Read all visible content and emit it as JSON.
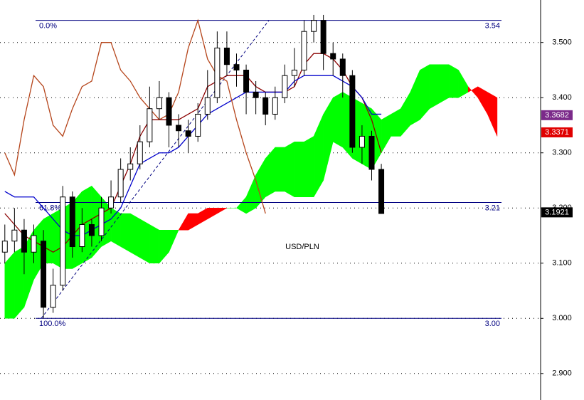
{
  "chart_data": {
    "type": "candlestick",
    "title": "USD/PLN",
    "x": [
      0,
      1,
      2,
      3,
      4,
      5,
      6,
      7,
      8,
      9,
      10,
      11,
      12,
      13,
      14,
      15,
      16,
      17,
      18,
      19,
      20,
      21,
      22,
      23,
      24,
      25,
      26,
      27,
      28,
      29,
      30,
      31,
      32,
      33,
      34,
      35,
      36,
      37,
      38,
      39
    ],
    "open": [
      3.12,
      3.14,
      3.16,
      3.12,
      3.14,
      3.02,
      3.06,
      3.22,
      3.13,
      3.17,
      3.15,
      3.2,
      3.22,
      3.27,
      3.28,
      3.32,
      3.38,
      3.4,
      3.35,
      3.34,
      3.33,
      3.37,
      3.4,
      3.49,
      3.46,
      3.45,
      3.41,
      3.4,
      3.37,
      3.4,
      3.44,
      3.45,
      3.52,
      3.54,
      3.48,
      3.47,
      3.44,
      3.31,
      3.33,
      3.27
    ],
    "high": [
      3.17,
      3.2,
      3.18,
      3.17,
      3.16,
      3.09,
      3.24,
      3.23,
      3.2,
      3.18,
      3.22,
      3.25,
      3.29,
      3.31,
      3.35,
      3.42,
      3.43,
      3.41,
      3.37,
      3.36,
      3.39,
      3.45,
      3.52,
      3.52,
      3.48,
      3.46,
      3.43,
      3.41,
      3.42,
      3.46,
      3.49,
      3.54,
      3.55,
      3.55,
      3.5,
      3.48,
      3.45,
      3.35,
      3.34,
      3.28
    ],
    "low": [
      3.1,
      3.12,
      3.08,
      3.1,
      3.0,
      3.01,
      3.05,
      3.11,
      3.12,
      3.13,
      3.14,
      3.19,
      3.21,
      3.25,
      3.27,
      3.31,
      3.36,
      3.31,
      3.31,
      3.3,
      3.32,
      3.36,
      3.39,
      3.44,
      3.42,
      3.37,
      3.37,
      3.35,
      3.36,
      3.39,
      3.42,
      3.44,
      3.5,
      3.45,
      3.44,
      3.4,
      3.3,
      3.28,
      3.25,
      3.19
    ],
    "close": [
      3.14,
      3.16,
      3.12,
      3.15,
      3.02,
      3.06,
      3.22,
      3.13,
      3.17,
      3.15,
      3.2,
      3.22,
      3.27,
      3.28,
      3.32,
      3.38,
      3.4,
      3.35,
      3.34,
      3.33,
      3.37,
      3.4,
      3.49,
      3.46,
      3.45,
      3.41,
      3.4,
      3.37,
      3.4,
      3.44,
      3.45,
      3.52,
      3.54,
      3.48,
      3.47,
      3.44,
      3.31,
      3.33,
      3.27,
      3.19
    ],
    "up_color": "#ffffff",
    "down_color": "#000000",
    "lines": [
      {
        "color": "#8b0000",
        "values": [
          3.19,
          3.17,
          3.15,
          3.14,
          3.13,
          3.12,
          3.13,
          3.15,
          3.17,
          3.18,
          3.19,
          3.2,
          3.24,
          3.28,
          3.33,
          3.36,
          3.36,
          3.36,
          3.36,
          3.37,
          3.38,
          3.42,
          3.43,
          3.44,
          3.44,
          3.44,
          3.42,
          3.41,
          3.41,
          3.41,
          3.42,
          3.46,
          3.48,
          3.48,
          3.47,
          3.45,
          3.42,
          3.4,
          3.36,
          3.3
        ]
      },
      {
        "color": "#0000cc",
        "values": [
          3.23,
          3.22,
          3.22,
          3.22,
          3.2,
          3.18,
          3.16,
          3.15,
          3.15,
          3.16,
          3.17,
          3.18,
          3.2,
          3.24,
          3.28,
          3.29,
          3.3,
          3.3,
          3.31,
          3.33,
          3.35,
          3.37,
          3.38,
          3.39,
          3.4,
          3.41,
          3.41,
          3.41,
          3.41,
          3.41,
          3.43,
          3.44,
          3.44,
          3.44,
          3.44,
          3.43,
          3.42,
          3.4,
          3.37,
          3.37
        ]
      },
      {
        "color": "#b5451b",
        "values": [
          3.3,
          3.26,
          3.36,
          3.44,
          3.42,
          3.35,
          3.33,
          3.38,
          3.42,
          3.43,
          3.5,
          3.5,
          3.45,
          3.43,
          3.4,
          3.38,
          3.36,
          3.37,
          3.41,
          3.49,
          3.54,
          3.47,
          3.44,
          3.43,
          3.36,
          3.3,
          3.25,
          3.19,
          null,
          null,
          null,
          null,
          null,
          null,
          null,
          null,
          null,
          null,
          null,
          null
        ]
      }
    ],
    "cloud_x": [
      0,
      1,
      2,
      3,
      4,
      5,
      6,
      7,
      8,
      9,
      10,
      11,
      12,
      13,
      14,
      15,
      16,
      17,
      18,
      19,
      20,
      21,
      22,
      23,
      24,
      25,
      26,
      27,
      28,
      29,
      30,
      31,
      32,
      33,
      34,
      35,
      36,
      37,
      38,
      39,
      40,
      41,
      42,
      43,
      44,
      45,
      46,
      47,
      48,
      49,
      50,
      51
    ],
    "span_a": [
      3.1,
      3.12,
      3.13,
      3.16,
      3.18,
      3.19,
      3.2,
      3.21,
      3.23,
      3.24,
      3.22,
      3.2,
      3.19,
      3.19,
      3.18,
      3.17,
      3.16,
      3.16,
      3.16,
      3.16,
      3.17,
      3.18,
      3.19,
      3.2,
      3.2,
      3.22,
      3.26,
      3.29,
      3.31,
      3.31,
      3.32,
      3.32,
      3.33,
      3.37,
      3.4,
      3.41,
      3.4,
      3.39,
      3.38,
      3.36,
      3.37,
      3.38,
      3.41,
      3.45,
      3.46,
      3.46,
      3.46,
      3.45,
      3.42,
      3.4,
      3.37,
      3.33
    ],
    "span_b": [
      3.0,
      3.0,
      3.02,
      3.07,
      3.1,
      3.1,
      3.09,
      3.09,
      3.1,
      3.11,
      3.13,
      3.14,
      3.13,
      3.12,
      3.11,
      3.1,
      3.1,
      3.12,
      3.16,
      3.19,
      3.19,
      3.2,
      3.2,
      3.2,
      3.2,
      3.19,
      3.2,
      3.22,
      3.23,
      3.23,
      3.22,
      3.22,
      3.22,
      3.25,
      3.32,
      3.31,
      3.29,
      3.28,
      3.27,
      3.3,
      3.33,
      3.33,
      3.35,
      3.36,
      3.38,
      3.39,
      3.4,
      3.4,
      3.41,
      3.42,
      3.41,
      3.4
    ],
    "cloud_up_color": "#00ff00",
    "cloud_down_color": "#ff0000",
    "fib_levels": {
      "labels": [
        "0.0%",
        "61.8%",
        "100.0%"
      ],
      "values": [
        3.54,
        3.21,
        3.0
      ],
      "value_labels": [
        "3.54",
        "3.21",
        "3.00"
      ]
    },
    "price_tags": {
      "values": [
        3.3682,
        3.3371,
        3.1921
      ],
      "colors": [
        "#7b2a8a",
        "#e00000",
        "#000000"
      ]
    },
    "xlim": [
      -0.5,
      55.5
    ],
    "ylim": [
      2.852,
      3.577
    ],
    "yticks": [
      {
        "value": 3.5,
        "label": "3.500"
      },
      {
        "value": 3.4,
        "label": "3.400"
      },
      {
        "value": 3.3,
        "label": "3.300"
      },
      {
        "value": 3.2,
        "label": "3.200"
      },
      {
        "value": 3.1,
        "label": "3.100"
      },
      {
        "value": 3.0,
        "label": "3.000"
      },
      {
        "value": 2.9,
        "label": "2.900"
      }
    ],
    "grid": true
  }
}
